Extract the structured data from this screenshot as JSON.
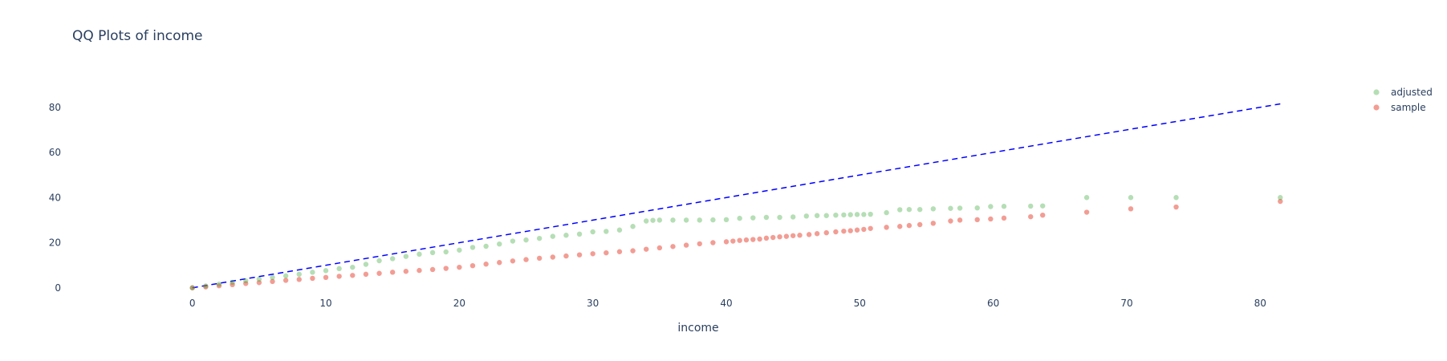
{
  "chart_data": {
    "type": "scatter",
    "title": "QQ Plots of income",
    "xlabel": "income",
    "ylabel": "",
    "xlim": [
      -9,
      89
    ],
    "ylim": [
      -4,
      92
    ],
    "x_ticks": [
      0,
      10,
      20,
      30,
      40,
      50,
      60,
      70,
      80
    ],
    "y_ticks": [
      0,
      20,
      40,
      60,
      80
    ],
    "grid": false,
    "legend_position": "top-right",
    "reference_line": {
      "from": [
        0,
        0
      ],
      "to": [
        81.5,
        81.5
      ],
      "color": "#0000ff",
      "style": "dashed"
    },
    "series": [
      {
        "name": "adjusted",
        "color": "#2ca02c",
        "x": [
          0,
          1,
          2,
          3,
          4,
          5,
          6,
          7,
          8,
          9,
          10,
          11,
          12,
          13,
          14,
          15,
          16,
          17,
          18,
          19,
          20,
          21,
          22,
          23,
          24,
          25,
          26,
          27,
          28,
          29,
          30,
          31,
          32,
          33,
          34,
          34.5,
          35,
          36,
          37,
          38,
          39,
          40,
          41,
          42,
          43,
          44,
          45,
          46,
          46.8,
          47.5,
          48.2,
          48.8,
          49.3,
          49.8,
          50.3,
          50.8,
          52,
          53,
          53.7,
          54.5,
          55.5,
          56.8,
          57.5,
          58.8,
          59.8,
          60.8,
          62.8,
          63.7,
          67,
          70.3,
          73.7,
          81.5
        ],
        "y": [
          0,
          0.8,
          1.6,
          2.4,
          3.1,
          3.8,
          4.6,
          5.3,
          6.0,
          6.9,
          7.6,
          8.5,
          9.1,
          10.4,
          12.0,
          12.9,
          13.9,
          14.9,
          15.6,
          15.9,
          16.7,
          17.9,
          18.4,
          19.4,
          20.7,
          21.2,
          21.9,
          22.8,
          23.3,
          23.8,
          24.8,
          25.0,
          25.6,
          27.2,
          29.6,
          29.9,
          30.0,
          30.0,
          30.0,
          30.0,
          30.1,
          30.2,
          30.8,
          31.0,
          31.2,
          31.2,
          31.4,
          31.8,
          32.0,
          32.0,
          32.2,
          32.3,
          32.4,
          32.5,
          32.5,
          32.6,
          33.3,
          34.6,
          34.7,
          34.7,
          35.0,
          35.2,
          35.3,
          35.4,
          36.0,
          36.1,
          36.2,
          36.3,
          40.0,
          40.0,
          40.0,
          40.0
        ]
      },
      {
        "name": "sample",
        "color": "#e74c3c",
        "x": [
          0,
          1,
          2,
          3,
          4,
          5,
          6,
          7,
          8,
          9,
          10,
          11,
          12,
          13,
          14,
          15,
          16,
          17,
          18,
          19,
          20,
          21,
          22,
          23,
          24,
          25,
          26,
          27,
          28,
          29,
          30,
          31,
          32,
          33,
          34,
          35,
          36,
          37,
          38,
          39,
          40,
          40.5,
          41,
          41.5,
          42,
          42.5,
          43,
          43.5,
          44,
          44.5,
          45,
          45.5,
          46.2,
          46.8,
          47.5,
          48.2,
          48.8,
          49.3,
          49.8,
          50.3,
          50.8,
          52,
          53,
          53.7,
          54.5,
          55.5,
          56.8,
          57.5,
          58.8,
          59.8,
          60.8,
          62.8,
          63.7,
          67,
          70.3,
          73.7,
          81.5
        ],
        "y": [
          0,
          0.4,
          0.9,
          1.4,
          1.9,
          2.3,
          2.8,
          3.3,
          3.7,
          4.2,
          4.6,
          5.1,
          5.5,
          6.0,
          6.4,
          6.9,
          7.3,
          7.7,
          8.1,
          8.6,
          9.1,
          9.8,
          10.5,
          11.2,
          11.9,
          12.5,
          13.1,
          13.6,
          14.1,
          14.6,
          15.1,
          15.5,
          16.0,
          16.4,
          17.1,
          17.7,
          18.3,
          18.9,
          19.5,
          20.0,
          20.4,
          20.7,
          21.0,
          21.2,
          21.4,
          21.6,
          22.0,
          22.3,
          22.6,
          22.8,
          23.1,
          23.3,
          23.6,
          24.0,
          24.4,
          24.8,
          25.1,
          25.3,
          25.6,
          25.9,
          26.3,
          26.8,
          27.2,
          27.6,
          28.0,
          28.6,
          29.6,
          30.0,
          30.2,
          30.5,
          30.9,
          31.5,
          32.2,
          33.5,
          35.0,
          35.8,
          38.3
        ]
      }
    ]
  }
}
